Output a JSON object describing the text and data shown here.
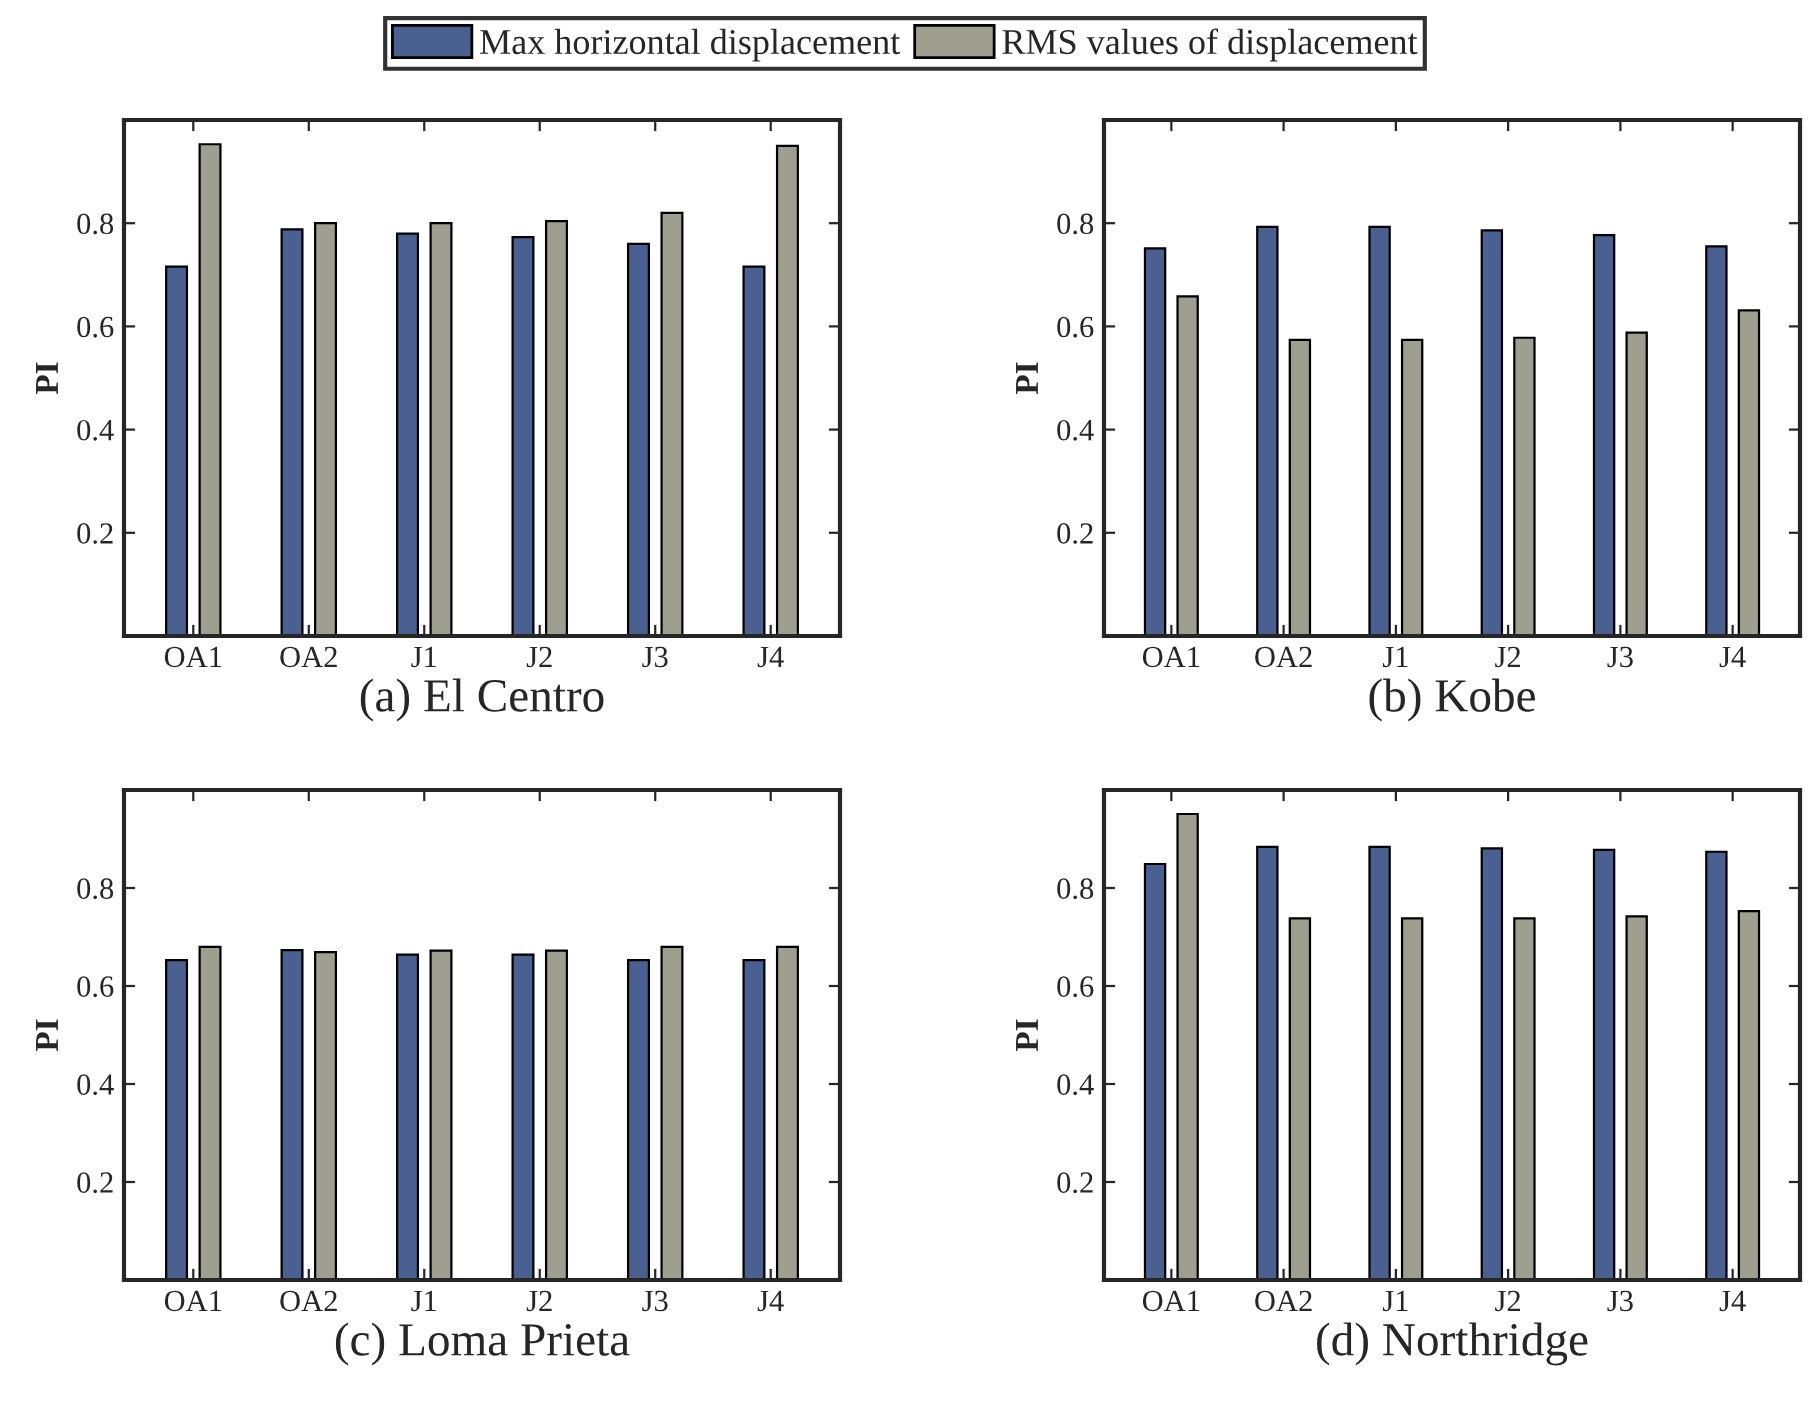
{
  "chart_data": [
    {
      "type": "bar",
      "title": "(a) El Centro",
      "ylabel": "PI",
      "categories": [
        "OA1",
        "OA2",
        "J1",
        "J2",
        "J3",
        "J4"
      ],
      "ylim": [
        0,
        1
      ],
      "yticks": [
        0.2,
        0.4,
        0.6,
        0.8
      ],
      "grid": false,
      "legend": "top",
      "series": [
        {
          "name": "Max horizontal displacement",
          "color": "#4a6090",
          "values": [
            0.716,
            0.788,
            0.78,
            0.773,
            0.76,
            0.716
          ]
        },
        {
          "name": "RMS values of displacement",
          "color": "#9e9f8f",
          "values": [
            0.953,
            0.8,
            0.8,
            0.804,
            0.82,
            0.95
          ]
        }
      ]
    },
    {
      "type": "bar",
      "title": "(b) Kobe",
      "ylabel": "PI",
      "categories": [
        "OA1",
        "OA2",
        "J1",
        "J2",
        "J3",
        "J4"
      ],
      "ylim": [
        0,
        1
      ],
      "yticks": [
        0.2,
        0.4,
        0.6,
        0.8
      ],
      "grid": false,
      "series": [
        {
          "color": "#4a6090",
          "values": [
            0.751,
            0.793,
            0.793,
            0.786,
            0.777,
            0.755
          ]
        },
        {
          "color": "#9e9f8f",
          "values": [
            0.658,
            0.574,
            0.574,
            0.578,
            0.588,
            0.631
          ]
        }
      ]
    },
    {
      "type": "bar",
      "title": "(c) Loma Prieta",
      "ylabel": "PI",
      "categories": [
        "OA1",
        "OA2",
        "J1",
        "J2",
        "J3",
        "J4"
      ],
      "ylim": [
        0,
        1
      ],
      "yticks": [
        0.2,
        0.4,
        0.6,
        0.8
      ],
      "grid": false,
      "series": [
        {
          "color": "#4a6090",
          "values": [
            0.653,
            0.673,
            0.664,
            0.664,
            0.653,
            0.653
          ]
        },
        {
          "color": "#9e9f8f",
          "values": [
            0.68,
            0.669,
            0.672,
            0.672,
            0.68,
            0.68
          ]
        }
      ]
    },
    {
      "type": "bar",
      "title": "(d) Northridge",
      "ylabel": "PI",
      "categories": [
        "OA1",
        "OA2",
        "J1",
        "J2",
        "J3",
        "J4"
      ],
      "ylim": [
        0,
        1
      ],
      "yticks": [
        0.2,
        0.4,
        0.6,
        0.8
      ],
      "grid": false,
      "series": [
        {
          "color": "#4a6090",
          "values": [
            0.849,
            0.884,
            0.884,
            0.881,
            0.878,
            0.874
          ]
        },
        {
          "color": "#9e9f8f",
          "values": [
            0.951,
            0.738,
            0.738,
            0.738,
            0.742,
            0.753
          ]
        }
      ]
    }
  ]
}
